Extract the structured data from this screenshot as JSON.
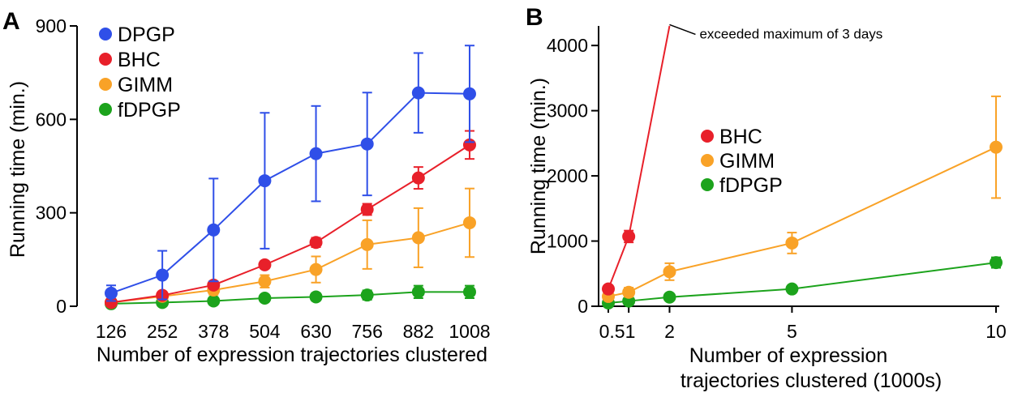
{
  "chart_data": [
    {
      "panel": "A",
      "type": "line",
      "xlabel": "Number of expression trajectories clustered",
      "ylabel": "Running time (min.)",
      "categories": [
        "126",
        "252",
        "378",
        "504",
        "630",
        "756",
        "882",
        "1008"
      ],
      "yticks": [
        "0",
        "300",
        "600",
        "900"
      ],
      "ylim": [
        0,
        900
      ],
      "legend_position": "top-left",
      "series": [
        {
          "name": "DPGP",
          "color": "#2f4fe8",
          "values": [
            42,
            100,
            245,
            403,
            490,
            521,
            685,
            682
          ],
          "err": [
            25,
            78,
            165,
            218,
            153,
            165,
            128,
            155
          ]
        },
        {
          "name": "BHC",
          "color": "#e8202a",
          "values": [
            12,
            35,
            68,
            133,
            205,
            311,
            412,
            518
          ],
          "err": [
            5,
            10,
            10,
            12,
            15,
            18,
            35,
            45
          ]
        },
        {
          "name": "GIMM",
          "color": "#f9a227",
          "values": [
            12,
            32,
            52,
            80,
            118,
            198,
            220,
            268
          ],
          "err": [
            5,
            10,
            15,
            20,
            42,
            78,
            95,
            110
          ]
        },
        {
          "name": "fDPGP",
          "color": "#1ca31c",
          "values": [
            8,
            12,
            17,
            26,
            30,
            36,
            46,
            46
          ],
          "err": [
            3,
            5,
            7,
            10,
            12,
            15,
            20,
            20
          ]
        }
      ]
    },
    {
      "panel": "B",
      "type": "line",
      "xlabel_line1": "Number of expression",
      "xlabel_line2": "trajectories clustered (1000s)",
      "ylabel": "Running time (min.)",
      "xticks": [
        0.5,
        1,
        2,
        5,
        10
      ],
      "xtick_labels": [
        "0.51",
        "",
        "2",
        "5",
        "10"
      ],
      "yticks": [
        "0",
        "1000",
        "2000",
        "3000",
        "4000"
      ],
      "ylim": [
        0,
        4300
      ],
      "legend_position": "center-left",
      "annotation": "exceeded maximum of 3 days",
      "series": [
        {
          "name": "BHC",
          "color": "#e8202a",
          "x": [
            0.5,
            1,
            2
          ],
          "values": [
            265,
            1070,
            4320
          ],
          "err": [
            45,
            90,
            0
          ],
          "marker": [
            true,
            true,
            false
          ]
        },
        {
          "name": "GIMM",
          "color": "#f9a227",
          "x": [
            0.5,
            1,
            2,
            5,
            10
          ],
          "values": [
            150,
            215,
            530,
            970,
            2440
          ],
          "err": [
            40,
            70,
            130,
            160,
            780
          ],
          "marker": [
            true,
            true,
            true,
            true,
            true
          ]
        },
        {
          "name": "fDPGP",
          "color": "#1ca31c",
          "x": [
            0.5,
            1,
            2,
            5,
            10
          ],
          "values": [
            50,
            80,
            140,
            265,
            670
          ],
          "err": [
            20,
            25,
            30,
            35,
            80
          ],
          "marker": [
            true,
            true,
            true,
            true,
            true
          ]
        }
      ]
    }
  ]
}
